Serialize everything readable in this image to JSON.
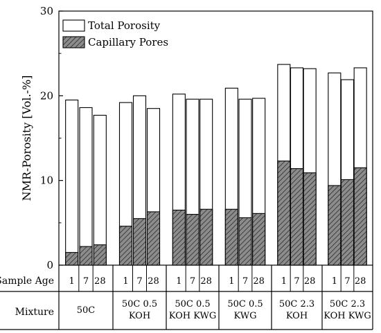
{
  "chart_data": {
    "type": "bar",
    "ylabel": "NMR-Porosity [Vol.-%]",
    "ylim": [
      0,
      30
    ],
    "yticks": [
      0,
      10,
      20,
      30
    ],
    "grid": false,
    "legend_position": "top-left",
    "row_labels": {
      "age": "Sample Age",
      "mixture": "Mixture"
    },
    "groups": [
      {
        "name": "50C",
        "ages": [
          "1",
          "7",
          "28"
        ]
      },
      {
        "name": "50C 0.5 KOH",
        "ages": [
          "1",
          "7",
          "28"
        ]
      },
      {
        "name": "50C 0.5 KOH KWG",
        "ages": [
          "1",
          "7",
          "28"
        ]
      },
      {
        "name": "50C 0.5 KWG",
        "ages": [
          "1",
          "7",
          "28"
        ]
      },
      {
        "name": "50C 2.3 KOH",
        "ages": [
          "1",
          "7",
          "28"
        ]
      },
      {
        "name": "50C 2.3 KOH KWG",
        "ages": [
          "1",
          "7",
          "28"
        ]
      }
    ],
    "series": [
      {
        "name": "Total Porosity",
        "fill": "#ffffff",
        "values": [
          19.5,
          18.6,
          17.7,
          19.2,
          20.0,
          18.5,
          20.2,
          19.6,
          19.6,
          20.9,
          19.6,
          19.7,
          23.7,
          23.3,
          23.2,
          22.7,
          21.9,
          23.3
        ]
      },
      {
        "name": "Capillary Pores",
        "fill": "#8c8c8c",
        "values": [
          1.5,
          2.2,
          2.4,
          4.6,
          5.5,
          6.3,
          6.5,
          6.0,
          6.6,
          6.6,
          5.6,
          6.1,
          12.3,
          11.4,
          10.9,
          9.4,
          10.1,
          11.5
        ]
      }
    ]
  }
}
